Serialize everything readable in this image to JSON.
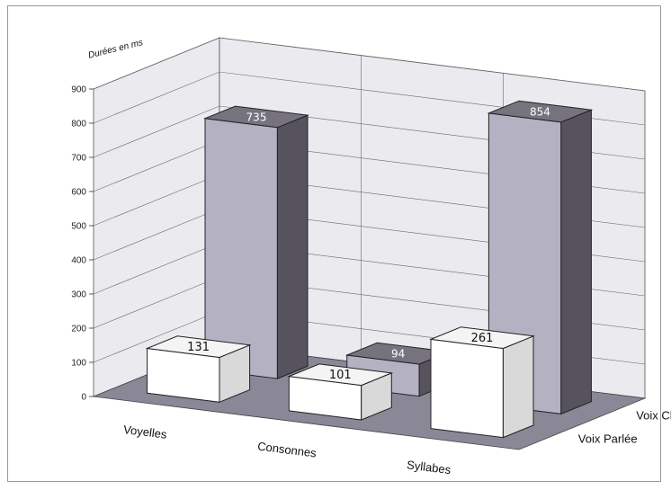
{
  "chart_data": {
    "type": "bar",
    "subtype": "3d-clustered-depth",
    "ylabel": "Durées en ms",
    "ylim": [
      0,
      900
    ],
    "yticks": [
      0,
      100,
      200,
      300,
      400,
      500,
      600,
      700,
      800,
      900
    ],
    "categories": [
      "Voyelles",
      "Consonnes",
      "Syllabes"
    ],
    "series": [
      {
        "name": "Voix Parlée",
        "values": [
          131,
          101,
          261
        ],
        "color": "#ffffff"
      },
      {
        "name": "Voix Chantée",
        "values": [
          735,
          94,
          854
        ],
        "color": "#b4b1c3"
      }
    ],
    "grid": true,
    "colors": {
      "floor": "#8a8797",
      "walls": "#ebeaef",
      "dark_side": "#56535f",
      "dark_top": "#76737f"
    }
  }
}
